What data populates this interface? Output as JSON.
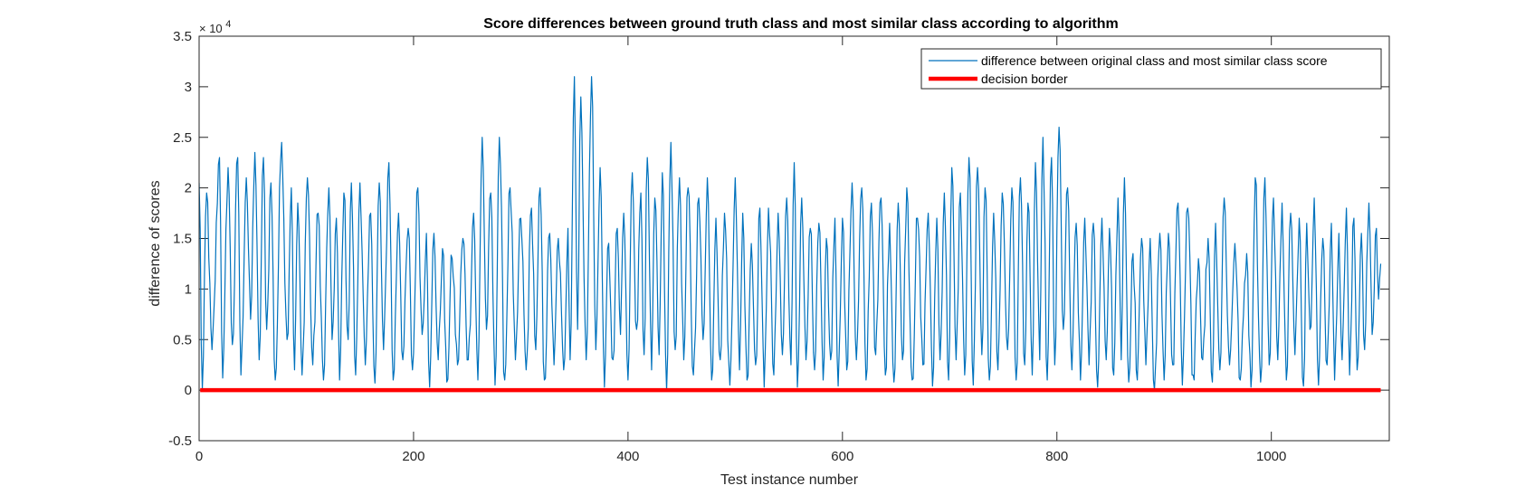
{
  "chart_data": {
    "type": "line",
    "title": "Score differences between ground truth class and most similar class according to algorithm",
    "xlabel": "Test instance number",
    "ylabel": "difference of scores",
    "xlim": [
      0,
      1110
    ],
    "ylim": [
      -5000,
      35000
    ],
    "x_ticks": [
      0,
      200,
      400,
      600,
      800,
      1000
    ],
    "y_ticks": [
      -5000,
      0,
      5000,
      10000,
      15000,
      20000,
      25000,
      30000,
      35000
    ],
    "y_tick_labels": [
      "-0.5",
      "0",
      "0.5",
      "1",
      "1.5",
      "2",
      "2.5",
      "3",
      "3.5"
    ],
    "y_exponent_base": "× 10",
    "y_exponent_power": "4",
    "grid": false,
    "legend_position": "top-right",
    "series": [
      {
        "name": "difference between original class and most similar class score",
        "color": "#0072BD",
        "x_start": 1,
        "x_end": 1102,
        "peaks": [
          [
            0,
            20500
          ],
          [
            7,
            19500
          ],
          [
            19,
            23000
          ],
          [
            27,
            22000
          ],
          [
            36,
            23000
          ],
          [
            44,
            21000
          ],
          [
            52,
            23500
          ],
          [
            60,
            23000
          ],
          [
            67,
            20500
          ],
          [
            77,
            24500
          ],
          [
            86,
            20000
          ],
          [
            92,
            18500
          ],
          [
            101,
            21000
          ],
          [
            111,
            17500
          ],
          [
            121,
            20000
          ],
          [
            128,
            17000
          ],
          [
            135,
            19500
          ],
          [
            142,
            20500
          ],
          [
            150,
            20500
          ],
          [
            160,
            17500
          ],
          [
            168,
            20500
          ],
          [
            177,
            22500
          ],
          [
            186,
            17500
          ],
          [
            195,
            16000
          ],
          [
            204,
            20000
          ],
          [
            212,
            15500
          ],
          [
            219,
            15500
          ],
          [
            227,
            14000
          ],
          [
            236,
            13000
          ],
          [
            246,
            15000
          ],
          [
            256,
            17500
          ],
          [
            264,
            25000
          ],
          [
            272,
            19500
          ],
          [
            280,
            25000
          ],
          [
            290,
            20000
          ],
          [
            300,
            17000
          ],
          [
            310,
            18000
          ],
          [
            318,
            20000
          ],
          [
            327,
            15500
          ],
          [
            335,
            15000
          ],
          [
            344,
            16000
          ],
          [
            350,
            31000
          ],
          [
            356,
            29000
          ],
          [
            366,
            31000
          ],
          [
            374,
            22000
          ],
          [
            381,
            14000
          ],
          [
            390,
            16000
          ],
          [
            396,
            17500
          ],
          [
            404,
            21500
          ],
          [
            412,
            19500
          ],
          [
            418,
            23000
          ],
          [
            425,
            19000
          ],
          [
            432,
            21500
          ],
          [
            440,
            24500
          ],
          [
            448,
            21000
          ],
          [
            456,
            20000
          ],
          [
            466,
            19000
          ],
          [
            474,
            21000
          ],
          [
            482,
            17000
          ],
          [
            490,
            17500
          ],
          [
            500,
            21000
          ],
          [
            507,
            17500
          ],
          [
            515,
            14500
          ],
          [
            523,
            18000
          ],
          [
            531,
            18000
          ],
          [
            540,
            17500
          ],
          [
            548,
            19000
          ],
          [
            555,
            22500
          ],
          [
            562,
            19000
          ],
          [
            570,
            16000
          ],
          [
            578,
            16500
          ],
          [
            585,
            15000
          ],
          [
            593,
            17000
          ],
          [
            600,
            17000
          ],
          [
            609,
            20500
          ],
          [
            618,
            20000
          ],
          [
            627,
            18500
          ],
          [
            636,
            19000
          ],
          [
            644,
            16500
          ],
          [
            652,
            18500
          ],
          [
            660,
            20000
          ],
          [
            670,
            17000
          ],
          [
            680,
            17500
          ],
          [
            688,
            17000
          ],
          [
            695,
            19500
          ],
          [
            702,
            22000
          ],
          [
            710,
            19500
          ],
          [
            718,
            23000
          ],
          [
            726,
            22000
          ],
          [
            733,
            20000
          ],
          [
            741,
            17500
          ],
          [
            749,
            19500
          ],
          [
            758,
            20000
          ],
          [
            766,
            21000
          ],
          [
            773,
            18500
          ],
          [
            780,
            22500
          ],
          [
            787,
            25000
          ],
          [
            795,
            23000
          ],
          [
            802,
            26000
          ],
          [
            810,
            20000
          ],
          [
            818,
            16500
          ],
          [
            826,
            17000
          ],
          [
            834,
            16500
          ],
          [
            842,
            17000
          ],
          [
            849,
            16000
          ],
          [
            857,
            19000
          ],
          [
            863,
            21000
          ],
          [
            871,
            13500
          ],
          [
            879,
            15000
          ],
          [
            887,
            15000
          ],
          [
            896,
            15500
          ],
          [
            904,
            15500
          ],
          [
            913,
            18500
          ],
          [
            922,
            18000
          ],
          [
            932,
            13000
          ],
          [
            941,
            15000
          ],
          [
            948,
            16500
          ],
          [
            956,
            19000
          ],
          [
            966,
            14500
          ],
          [
            977,
            13500
          ],
          [
            985,
            21000
          ],
          [
            994,
            21000
          ],
          [
            1002,
            19000
          ],
          [
            1010,
            18500
          ],
          [
            1018,
            17500
          ],
          [
            1026,
            17000
          ],
          [
            1033,
            16500
          ],
          [
            1040,
            19000
          ],
          [
            1048,
            15000
          ],
          [
            1056,
            16500
          ],
          [
            1063,
            15500
          ],
          [
            1070,
            18000
          ],
          [
            1077,
            17000
          ],
          [
            1084,
            15500
          ],
          [
            1091,
            18500
          ],
          [
            1098,
            16000
          ],
          [
            1102,
            12500
          ]
        ],
        "troughs": [
          [
            3,
            100
          ],
          [
            12,
            4000
          ],
          [
            22,
            1200
          ],
          [
            31,
            4500
          ],
          [
            39,
            1500
          ],
          [
            48,
            7000
          ],
          [
            56,
            3000
          ],
          [
            63,
            6000
          ],
          [
            71,
            1000
          ],
          [
            82,
            5000
          ],
          [
            89,
            2000
          ],
          [
            96,
            1500
          ],
          [
            106,
            2500
          ],
          [
            116,
            1000
          ],
          [
            124,
            5000
          ],
          [
            131,
            1000
          ],
          [
            139,
            5000
          ],
          [
            146,
            1500
          ],
          [
            155,
            2500
          ],
          [
            164,
            700
          ],
          [
            172,
            4000
          ],
          [
            181,
            1000
          ],
          [
            190,
            3000
          ],
          [
            199,
            2000
          ],
          [
            208,
            5500
          ],
          [
            215,
            300
          ],
          [
            223,
            3000
          ],
          [
            231,
            800
          ],
          [
            241,
            2500
          ],
          [
            251,
            3000
          ],
          [
            260,
            1000
          ],
          [
            268,
            6000
          ],
          [
            276,
            500
          ],
          [
            285,
            1000
          ],
          [
            295,
            3000
          ],
          [
            305,
            2000
          ],
          [
            314,
            4000
          ],
          [
            322,
            1000
          ],
          [
            331,
            2500
          ],
          [
            340,
            2000
          ],
          [
            346,
            3000
          ],
          [
            353,
            6000
          ],
          [
            361,
            3000
          ],
          [
            370,
            4000
          ],
          [
            378,
            300
          ],
          [
            386,
            3000
          ],
          [
            393,
            5500
          ],
          [
            400,
            1000
          ],
          [
            408,
            6000
          ],
          [
            415,
            3500
          ],
          [
            422,
            2000
          ],
          [
            429,
            3500
          ],
          [
            436,
            0
          ],
          [
            444,
            4000
          ],
          [
            452,
            3000
          ],
          [
            461,
            1500
          ],
          [
            470,
            5000
          ],
          [
            478,
            1000
          ],
          [
            486,
            3000
          ],
          [
            495,
            500
          ],
          [
            504,
            2000
          ],
          [
            511,
            1000
          ],
          [
            519,
            2500
          ],
          [
            527,
            300
          ],
          [
            536,
            1500
          ],
          [
            544,
            3500
          ],
          [
            552,
            2500
          ],
          [
            558,
            300
          ],
          [
            566,
            3000
          ],
          [
            574,
            2000
          ],
          [
            582,
            1000
          ],
          [
            589,
            3000
          ],
          [
            596,
            400
          ],
          [
            604,
            2000
          ],
          [
            613,
            3000
          ],
          [
            622,
            1000
          ],
          [
            631,
            3500
          ],
          [
            640,
            1500
          ],
          [
            648,
            800
          ],
          [
            656,
            3000
          ],
          [
            665,
            1000
          ],
          [
            675,
            2500
          ],
          [
            684,
            400
          ],
          [
            691,
            3000
          ],
          [
            699,
            1000
          ],
          [
            706,
            3000
          ],
          [
            714,
            1500
          ],
          [
            722,
            500
          ],
          [
            730,
            3500
          ],
          [
            737,
            1000
          ],
          [
            745,
            2000
          ],
          [
            754,
            4000
          ],
          [
            762,
            1000
          ],
          [
            770,
            2500
          ],
          [
            777,
            1500
          ],
          [
            784,
            3000
          ],
          [
            791,
            1000
          ],
          [
            798,
            2500
          ],
          [
            806,
            6000
          ],
          [
            814,
            2000
          ],
          [
            822,
            1000
          ],
          [
            830,
            2500
          ],
          [
            838,
            300
          ],
          [
            846,
            3000
          ],
          [
            853,
            1500
          ],
          [
            860,
            3000
          ],
          [
            867,
            800
          ],
          [
            875,
            1000
          ],
          [
            883,
            2500
          ],
          [
            891,
            0
          ],
          [
            900,
            1000
          ],
          [
            908,
            2500
          ],
          [
            917,
            500
          ],
          [
            927,
            1500
          ],
          [
            936,
            3000
          ],
          [
            945,
            800
          ],
          [
            952,
            2000
          ],
          [
            961,
            2500
          ],
          [
            971,
            1000
          ],
          [
            981,
            300
          ],
          [
            990,
            800
          ],
          [
            998,
            2500
          ],
          [
            1006,
            3000
          ],
          [
            1014,
            1000
          ],
          [
            1022,
            3500
          ],
          [
            1030,
            400
          ],
          [
            1036,
            6000
          ],
          [
            1044,
            500
          ],
          [
            1052,
            2500
          ],
          [
            1059,
            1000
          ],
          [
            1066,
            3000
          ],
          [
            1073,
            1500
          ],
          [
            1080,
            2000
          ],
          [
            1087,
            4000
          ],
          [
            1094,
            5500
          ],
          [
            1100,
            9000
          ]
        ]
      },
      {
        "name": "decision border",
        "color": "#FF0000",
        "x": [
          1,
          1102
        ],
        "y": [
          0,
          0
        ]
      }
    ]
  }
}
